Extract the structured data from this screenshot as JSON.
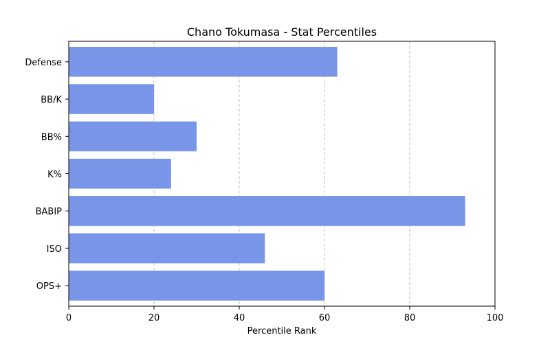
{
  "chart_data": {
    "type": "bar",
    "orientation": "horizontal",
    "title": "Chano Tokumasa - Stat Percentiles",
    "xlabel": "Percentile Rank",
    "ylabel": "",
    "categories": [
      "OPS+",
      "ISO",
      "BABIP",
      "K%",
      "BB%",
      "BB/K",
      "Defense"
    ],
    "values": [
      60,
      46,
      93,
      24,
      30,
      20,
      63
    ],
    "xlim": [
      0,
      100
    ],
    "xticks": [
      0,
      20,
      40,
      60,
      80,
      100
    ],
    "grid": "x-dashed",
    "bar_color": "#7895e8"
  }
}
